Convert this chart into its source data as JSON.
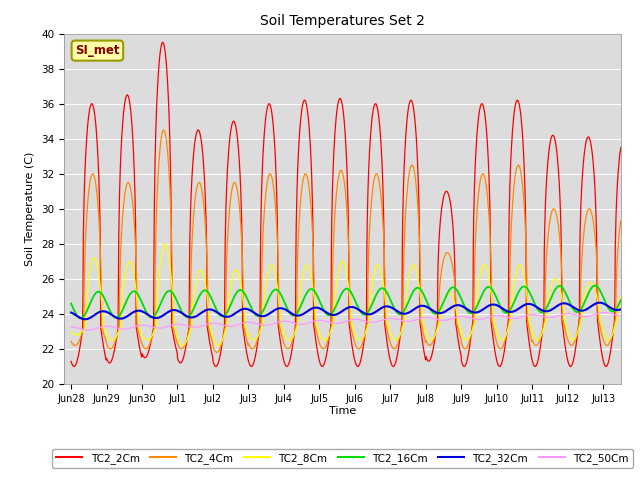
{
  "title": "Soil Temperatures Set 2",
  "xlabel": "Time",
  "ylabel": "Soil Temperature (C)",
  "ylim": [
    20,
    40
  ],
  "yticks": [
    20,
    22,
    24,
    26,
    28,
    30,
    32,
    34,
    36,
    38,
    40
  ],
  "bg_color": "#dcdcdc",
  "annotation_text": "SI_met",
  "annotation_bg": "#ffffaa",
  "annotation_border": "#999900",
  "series_colors": {
    "TC2_2Cm": "#ff0000",
    "TC2_4Cm": "#ff8800",
    "TC2_8Cm": "#ffff00",
    "TC2_16Cm": "#00dd00",
    "TC2_32Cm": "#0000dd",
    "TC2_50Cm": "#ff99ff"
  },
  "xtick_labels": [
    "Jun 28",
    "Jun 29",
    "Jun 30",
    "Jul 1",
    "Jul 2",
    "Jul 3",
    "Jul 4",
    "Jul 5",
    "Jul 6",
    "Jul 7",
    "Jul 8",
    "Jul 9",
    "Jul 10",
    "Jul 11",
    "Jul 12",
    "Jul 13"
  ],
  "n_days": 15.5,
  "points_per_day": 96
}
